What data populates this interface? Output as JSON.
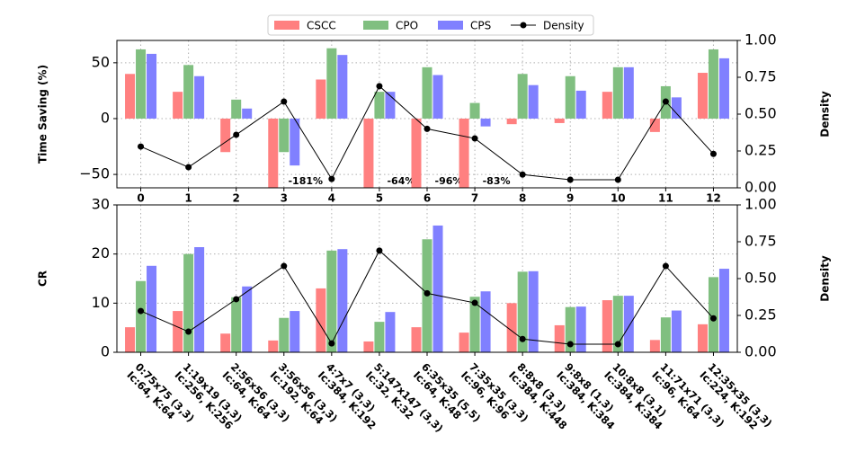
{
  "legend": "upper center",
  "chart_data": [
    {
      "type": "bar",
      "ylabel": "Time Saving (%)",
      "y2label": "Density",
      "categories": [
        "0",
        "1",
        "2",
        "3",
        "4",
        "5",
        "6",
        "7",
        "8",
        "9",
        "10",
        "11",
        "12"
      ],
      "ylim": [
        -62,
        70
      ],
      "yticks": [
        {
          "value": -50,
          "label": "−50"
        },
        0,
        50
      ],
      "y2lim": [
        0,
        1
      ],
      "y2ticks": [
        {
          "value": 0,
          "label": "0.00"
        },
        {
          "value": 0.25,
          "label": "0.25"
        },
        {
          "value": 0.5,
          "label": "0.50"
        },
        {
          "value": 0.75,
          "label": "0.75"
        },
        {
          "value": 1,
          "label": "1.00"
        }
      ],
      "grid": true,
      "series": [
        {
          "name": "CSCC",
          "color": "#ff8080",
          "values": [
            40,
            24,
            -30,
            -181,
            35,
            -64,
            -96,
            -83,
            -5,
            -4,
            24,
            -12,
            41
          ],
          "value_labels": [
            null,
            null,
            null,
            "-181%",
            null,
            "-64%",
            "-96%",
            "-83%",
            null,
            null,
            null,
            null,
            null
          ]
        },
        {
          "name": "CPO",
          "color": "#80bf80",
          "values": [
            62,
            48,
            17,
            -30,
            63,
            24,
            46,
            14,
            40,
            38,
            46,
            29,
            62
          ]
        },
        {
          "name": "CPS",
          "color": "#8080ff",
          "values": [
            58,
            38,
            9,
            -42,
            57,
            24,
            39,
            -7,
            30,
            25,
            46,
            19,
            54
          ]
        },
        {
          "name": "Density",
          "type": "line",
          "axis": "y2",
          "color": "#000000",
          "values": [
            0.28,
            0.14,
            0.36,
            0.585,
            0.06,
            0.69,
            0.4,
            0.335,
            0.09,
            0.055,
            0.055,
            0.585,
            0.23
          ]
        }
      ]
    },
    {
      "type": "bar",
      "ylabel": "CR",
      "y2label": "Density",
      "categories": [
        [
          "0:75x75 (3,3)",
          "Ic:64, K:64"
        ],
        [
          "1:19x19 (3,3)",
          "Ic:256, K:256"
        ],
        [
          "2:56x56 (3,3)",
          "Ic:64, K:64"
        ],
        [
          "3:56x56 (3,3)",
          "Ic:192, K:64"
        ],
        [
          "4:7x7 (3,3)",
          "Ic:384, K:192"
        ],
        [
          "5:147x147 (3,3)",
          "Ic:32, K:32"
        ],
        [
          "6:35x35 (5,5)",
          "Ic:64, K:48"
        ],
        [
          "7:35x35 (3,3)",
          "Ic:96, K:96"
        ],
        [
          "8:8x8 (3,3)",
          "Ic:384, K:448"
        ],
        [
          "9:8x8 (1,3)",
          "Ic:384, K:384"
        ],
        [
          "10:8x8 (3,1)",
          "Ic:384, K:384"
        ],
        [
          "11:71x71 (3,3)",
          "Ic:96, K:64"
        ],
        [
          "12:35x35 (3,3)",
          "Ic:224, K:192"
        ]
      ],
      "ylim": [
        0,
        30
      ],
      "yticks": [
        0,
        10,
        20,
        30
      ],
      "y2lim": [
        0,
        1
      ],
      "y2ticks": [
        {
          "value": 0,
          "label": "0.00"
        },
        {
          "value": 0.25,
          "label": "0.25"
        },
        {
          "value": 0.5,
          "label": "0.50"
        },
        {
          "value": 0.75,
          "label": "0.75"
        },
        {
          "value": 1,
          "label": "1.00"
        }
      ],
      "grid": true,
      "series": [
        {
          "color": "#ff8080",
          "values": [
            5.1,
            8.4,
            3.8,
            2.4,
            13,
            2.2,
            5.1,
            4,
            10,
            5.5,
            10.6,
            2.5,
            5.7
          ]
        },
        {
          "color": "#80bf80",
          "values": [
            14.5,
            20,
            11.2,
            7,
            20.7,
            6.2,
            23,
            11.3,
            16.4,
            9.2,
            11.5,
            7.1,
            15.3
          ]
        },
        {
          "color": "#8080ff",
          "values": [
            17.6,
            21.4,
            13.4,
            8.4,
            21,
            8.2,
            25.8,
            12.4,
            16.5,
            9.3,
            11.5,
            8.5,
            17
          ]
        },
        {
          "type": "line",
          "axis": "y2",
          "color": "#000000",
          "values": [
            0.28,
            0.14,
            0.36,
            0.585,
            0.06,
            0.69,
            0.4,
            0.335,
            0.09,
            0.055,
            0.055,
            0.585,
            0.23
          ]
        }
      ]
    }
  ]
}
